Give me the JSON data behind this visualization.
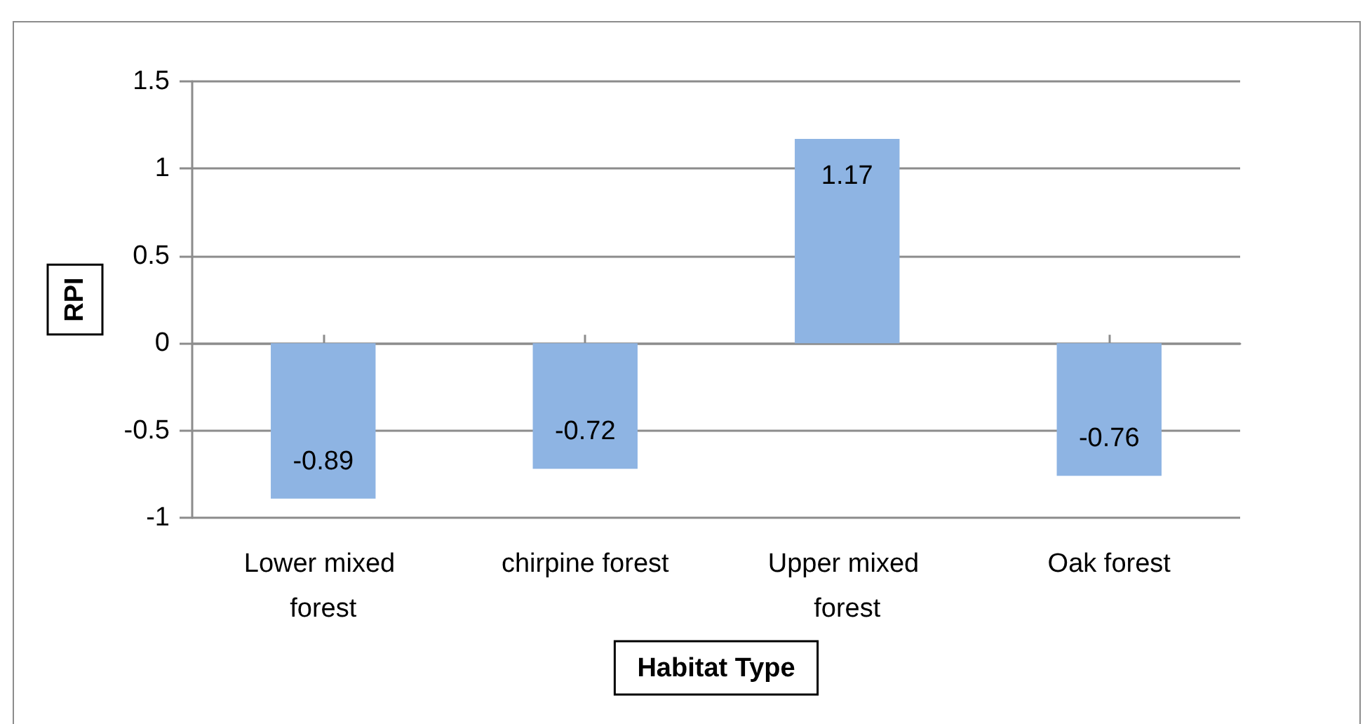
{
  "chart_data": {
    "type": "bar",
    "xlabel": "Habitat Type",
    "ylabel": "RPI",
    "categories": [
      "Lower mixed forest",
      "chirpine forest",
      "Upper mixed forest",
      "Oak forest"
    ],
    "values": [
      -0.89,
      -0.72,
      1.17,
      -0.76
    ],
    "color": "#8eb4e3",
    "ylim": [
      -1,
      1.5
    ],
    "yticks": [
      -1,
      -0.5,
      0,
      0.5,
      1,
      1.5
    ],
    "grid": "y",
    "data_labels": true
  }
}
